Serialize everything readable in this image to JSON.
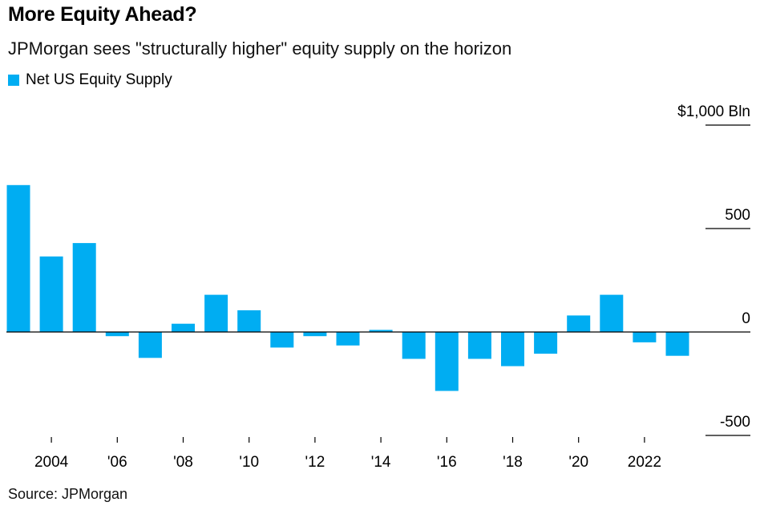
{
  "title": "More Equity Ahead?",
  "subtitle": "JPMorgan sees \"structurally higher\" equity supply on the horizon",
  "source": "Source: JPMorgan",
  "colors": {
    "bar": "#00adf2",
    "axis": "#000000",
    "text": "#000000"
  },
  "chart_data": {
    "type": "bar",
    "series": [
      {
        "name": "Net US Equity Supply",
        "x": [
          2003,
          2004,
          2005,
          2006,
          2007,
          2008,
          2009,
          2010,
          2011,
          2012,
          2013,
          2014,
          2015,
          2016,
          2017,
          2018,
          2019,
          2020,
          2021,
          2022,
          2023
        ],
        "values": [
          710,
          365,
          430,
          -20,
          -125,
          40,
          180,
          105,
          -75,
          -20,
          -65,
          10,
          -130,
          -285,
          -130,
          -165,
          -105,
          80,
          180,
          -50,
          -115
        ]
      }
    ],
    "x_tick_labels": [
      {
        "x": 2004,
        "label": "2004"
      },
      {
        "x": 2006,
        "label": "'06"
      },
      {
        "x": 2008,
        "label": "'08"
      },
      {
        "x": 2010,
        "label": "'10"
      },
      {
        "x": 2012,
        "label": "'12"
      },
      {
        "x": 2014,
        "label": "'14"
      },
      {
        "x": 2016,
        "label": "'16"
      },
      {
        "x": 2018,
        "label": "'18"
      },
      {
        "x": 2020,
        "label": "'20"
      },
      {
        "x": 2022,
        "label": "2022"
      }
    ],
    "y_ticks": [
      {
        "value": 1000,
        "label": "$1,000 Bln"
      },
      {
        "value": 500,
        "label": "500"
      },
      {
        "value": 0,
        "label": "0"
      },
      {
        "value": -500,
        "label": "-500"
      }
    ],
    "ylim": [
      -500,
      1000
    ],
    "y_axis_side": "right",
    "legend_position": "top-left",
    "grid": false
  }
}
